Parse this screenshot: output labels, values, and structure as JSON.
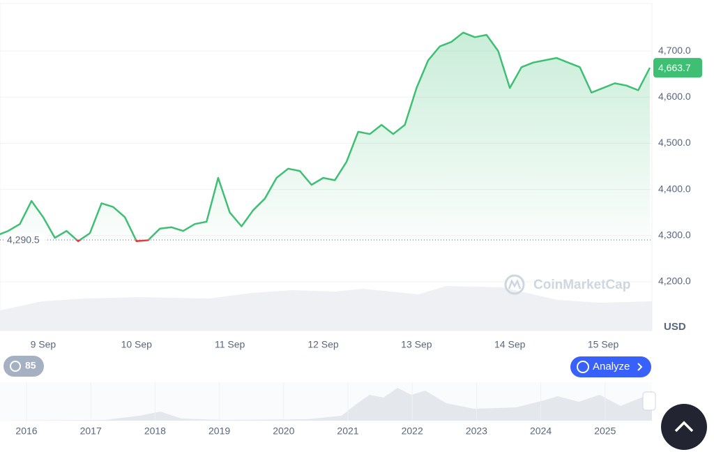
{
  "chart_data": {
    "type": "line",
    "currency": "USD",
    "categories": [
      null,
      null,
      null,
      null,
      "9 Sep",
      null,
      null,
      null,
      null,
      null,
      null,
      null,
      "10 Sep",
      null,
      null,
      null,
      null,
      null,
      null,
      null,
      "11 Sep",
      null,
      null,
      null,
      null,
      null,
      null,
      null,
      "12 Sep",
      null,
      null,
      null,
      null,
      null,
      null,
      null,
      "13 Sep",
      null,
      null,
      null,
      null,
      null,
      null,
      null,
      "14 Sep",
      null,
      null,
      null,
      null,
      null,
      null,
      null,
      "15 Sep",
      null,
      null,
      null,
      null
    ],
    "values": [
      4300,
      4310,
      4325,
      4375,
      4340,
      4295,
      4310,
      4288,
      4305,
      4370,
      4362,
      4340,
      4288,
      4290,
      4315,
      4318,
      4310,
      4325,
      4330,
      4425,
      4350,
      4320,
      4355,
      4380,
      4425,
      4445,
      4440,
      4410,
      4425,
      4420,
      4460,
      4525,
      4520,
      4540,
      4520,
      4540,
      4620,
      4680,
      4710,
      4720,
      4740,
      4730,
      4735,
      4700,
      4620,
      4665,
      4675,
      4680,
      4685,
      4675,
      4665,
      4610,
      4620,
      4630,
      4625,
      4615,
      4663.7
    ],
    "color": "#3fbf74",
    "down_color": "#ea3943",
    "ylim": [
      4094,
      4803
    ],
    "yticks": [
      {
        "value": 4200,
        "label": "4,200.0"
      },
      {
        "value": 4300,
        "label": "4,300.0"
      },
      {
        "value": 4400,
        "label": "4,400.0"
      },
      {
        "value": 4500,
        "label": "4,500.0"
      },
      {
        "value": 4600,
        "label": "4,600.0"
      },
      {
        "value": 4700,
        "label": "4,700.0"
      }
    ],
    "grid": true,
    "reference": {
      "value": 4290.5,
      "label": "4,290.5"
    },
    "last_price": {
      "value": 4663.7,
      "label": "4,663.7"
    },
    "watermark": "CoinMarketCap",
    "history_badge": "85",
    "analyze_button": "Analyze",
    "navigator_years": [
      "2016",
      "2017",
      "2018",
      "2019",
      "2020",
      "2021",
      "2022",
      "2023",
      "2024",
      "2025"
    ]
  }
}
